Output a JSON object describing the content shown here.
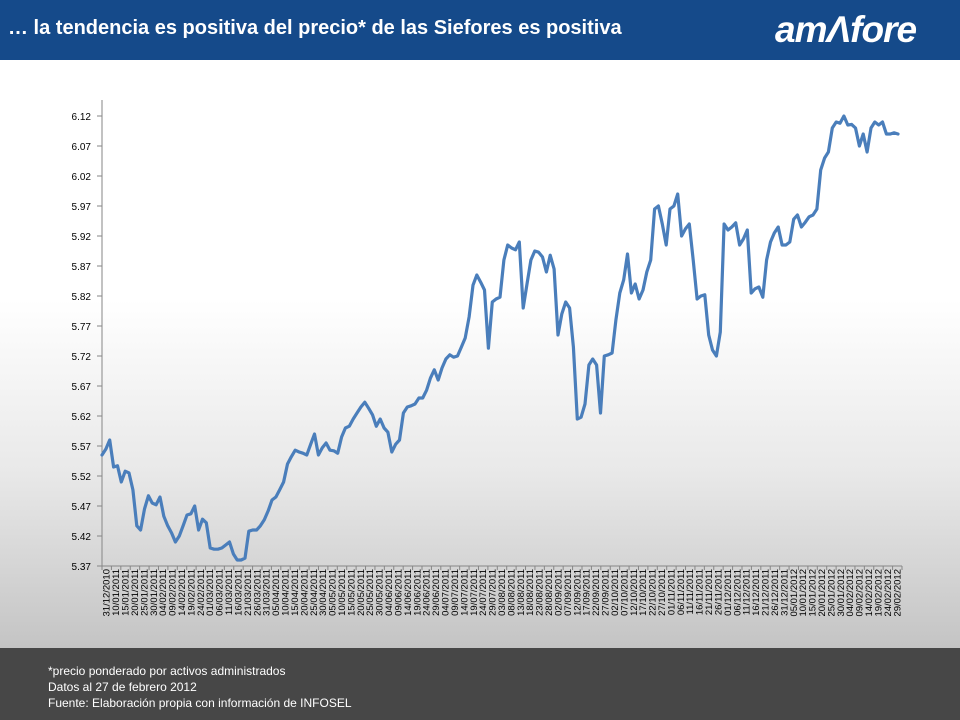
{
  "header": {
    "title": "… la tendencia es positiva del precio* de las Siefores es positiva",
    "logo_text": "amAfore",
    "bg_color": "#154a8a"
  },
  "footer": {
    "note": "*precio ponderado por activos administrados",
    "date_line": "Datos al 27 de febrero 2012",
    "source": "Fuente: Elaboración propia con información de INFOSEL",
    "bg_color": "#474747"
  },
  "chart_data": {
    "type": "line",
    "title": "",
    "xlabel": "",
    "ylabel": "",
    "ylim": [
      5.37,
      6.12
    ],
    "yticks": [
      5.37,
      5.42,
      5.47,
      5.52,
      5.57,
      5.62,
      5.67,
      5.72,
      5.77,
      5.82,
      5.87,
      5.92,
      5.97,
      6.02,
      6.07,
      6.12
    ],
    "ytick_labels": [
      "5.37",
      "5.42",
      "5.47",
      "5.52",
      "5.57",
      "5.62",
      "5.67",
      "5.72",
      "5.77",
      "5.82",
      "5.87",
      "5.92",
      "5.97",
      "6.02",
      "6.07",
      "6.12"
    ],
    "x_tick_labels": [
      "31/12/2010",
      "10/01/2011",
      "15/01/2011",
      "20/01/2011",
      "25/01/2011",
      "30/01/2011",
      "04/02/2011",
      "09/02/2011",
      "14/02/2011",
      "19/02/2011",
      "24/02/2011",
      "01/03/2011",
      "06/03/2011",
      "11/03/2011",
      "16/03/2011",
      "21/03/2011",
      "26/03/2011",
      "31/03/2011",
      "05/04/2011",
      "10/04/2011",
      "15/04/2011",
      "20/04/2011",
      "25/04/2011",
      "30/04/2011",
      "05/05/2011",
      "10/05/2011",
      "15/05/2011",
      "20/05/2011",
      "25/05/2011",
      "30/05/2011",
      "04/06/2011",
      "09/06/2011",
      "14/06/2011",
      "19/06/2011",
      "24/06/2011",
      "29/06/2011",
      "04/07/2011",
      "09/07/2011",
      "14/07/2011",
      "19/07/2011",
      "24/07/2011",
      "29/07/2011",
      "03/08/2011",
      "08/08/2011",
      "13/08/2011",
      "18/08/2011",
      "23/08/2011",
      "28/08/2011",
      "02/09/2011",
      "07/09/2011",
      "12/09/2011",
      "17/09/2011",
      "22/09/2011",
      "27/09/2011",
      "02/10/2011",
      "07/10/2011",
      "12/10/2011",
      "17/10/2011",
      "22/10/2011",
      "27/10/2011",
      "01/11/2011",
      "06/11/2011",
      "11/11/2011",
      "16/11/2011",
      "21/11/2011",
      "26/11/2011",
      "01/12/2011",
      "06/12/2011",
      "11/12/2011",
      "16/12/2011",
      "21/12/2011",
      "26/12/2011",
      "31/12/2011",
      "05/01/2012",
      "10/01/2012",
      "15/01/2012",
      "20/01/2012",
      "25/01/2012",
      "30/01/2012",
      "04/02/2012",
      "09/02/2012",
      "14/02/2012",
      "19/02/2012",
      "24/02/2012",
      "29/02/2012"
    ],
    "grid": false,
    "series": [
      {
        "color": "#4a7ebb",
        "values": [
          5.555,
          5.565,
          5.58,
          5.535,
          5.537,
          5.51,
          5.528,
          5.525,
          5.497,
          5.437,
          5.43,
          5.465,
          5.487,
          5.475,
          5.472,
          5.485,
          5.453,
          5.437,
          5.425,
          5.41,
          5.42,
          5.437,
          5.455,
          5.457,
          5.47,
          5.43,
          5.448,
          5.442,
          5.4,
          5.398,
          5.398,
          5.4,
          5.405,
          5.41,
          5.39,
          5.38,
          5.38,
          5.383,
          5.428,
          5.43,
          5.43,
          5.437,
          5.447,
          5.462,
          5.48,
          5.485,
          5.497,
          5.51,
          5.54,
          5.552,
          5.563,
          5.56,
          5.558,
          5.555,
          5.573,
          5.59,
          5.555,
          5.567,
          5.575,
          5.563,
          5.562,
          5.558,
          5.585,
          5.6,
          5.603,
          5.615,
          5.625,
          5.635,
          5.643,
          5.633,
          5.622,
          5.603,
          5.615,
          5.6,
          5.593,
          5.56,
          5.573,
          5.58,
          5.625,
          5.635,
          5.637,
          5.64,
          5.65,
          5.65,
          5.663,
          5.683,
          5.697,
          5.68,
          5.7,
          5.715,
          5.722,
          5.718,
          5.72,
          5.735,
          5.75,
          5.785,
          5.838,
          5.855,
          5.843,
          5.83,
          5.733,
          5.81,
          5.815,
          5.818,
          5.88,
          5.905,
          5.9,
          5.897,
          5.91,
          5.8,
          5.84,
          5.88,
          5.895,
          5.893,
          5.885,
          5.86,
          5.888,
          5.865,
          5.755,
          5.79,
          5.81,
          5.8,
          5.735,
          5.615,
          5.618,
          5.64,
          5.705,
          5.715,
          5.705,
          5.625,
          5.72,
          5.722,
          5.725,
          5.78,
          5.825,
          5.847,
          5.89,
          5.825,
          5.84,
          5.815,
          5.83,
          5.86,
          5.88,
          5.965,
          5.97,
          5.94,
          5.905,
          5.965,
          5.97,
          5.99,
          5.92,
          5.932,
          5.94,
          5.88,
          5.815,
          5.82,
          5.822,
          5.755,
          5.73,
          5.72,
          5.76,
          5.94,
          5.93,
          5.935,
          5.942,
          5.905,
          5.915,
          5.93,
          5.825,
          5.832,
          5.835,
          5.818,
          5.88,
          5.91,
          5.925,
          5.935,
          5.905,
          5.905,
          5.91,
          5.948,
          5.955,
          5.935,
          5.943,
          5.952,
          5.955,
          5.965,
          6.03,
          6.05,
          6.06,
          6.1,
          6.11,
          6.108,
          6.12,
          6.105,
          6.106,
          6.1,
          6.07,
          6.09,
          6.06,
          6.1,
          6.11,
          6.105,
          6.11,
          6.09,
          6.09,
          6.092,
          6.09
        ]
      }
    ]
  }
}
